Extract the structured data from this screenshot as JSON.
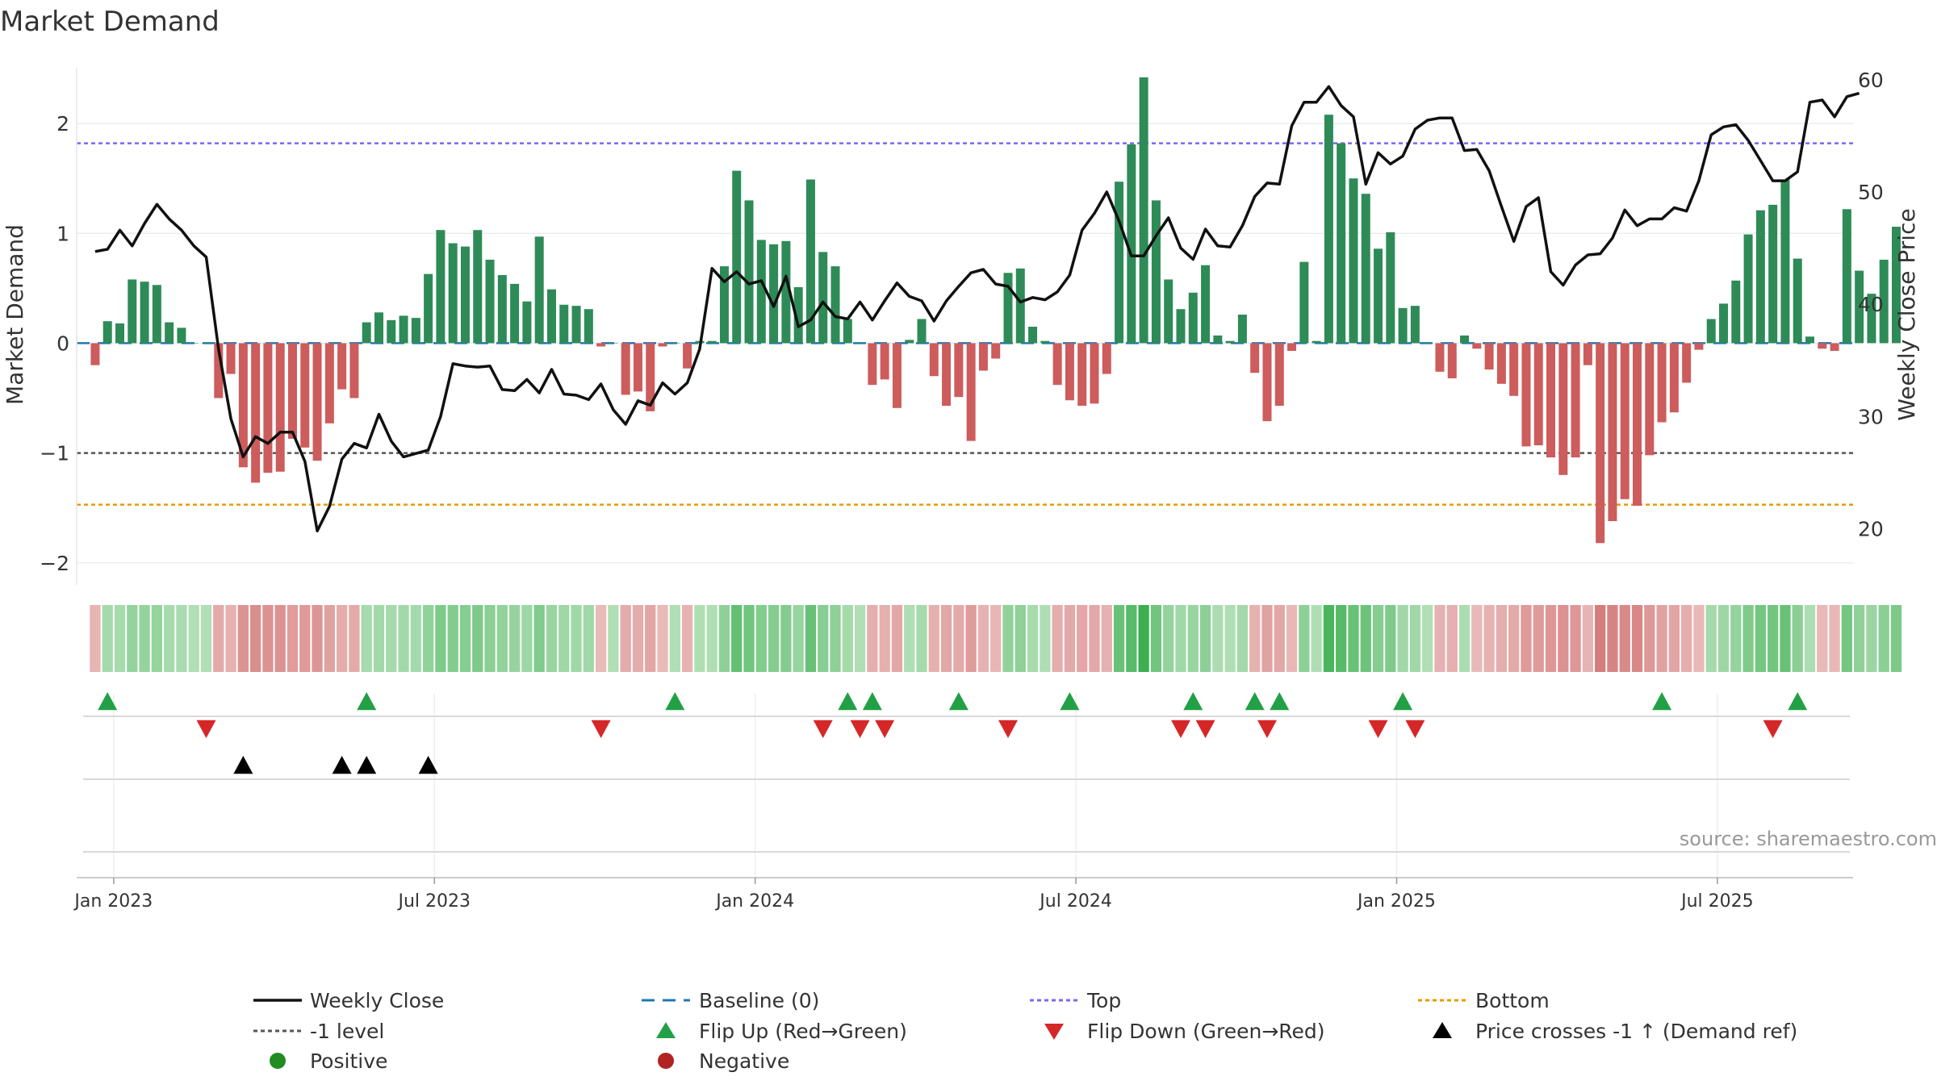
{
  "chart_data": {
    "type": "bar",
    "title": "Market Demand",
    "ylabel_left": "Market Demand",
    "ylabel_right": "Weekly Close Price",
    "source": "source: sharemaestro.com",
    "ylim_left": [
      -2.2,
      2.5
    ],
    "ylim_right": [
      15,
      61
    ],
    "yticks_left": [
      {
        "v": 2,
        "label": "2"
      },
      {
        "v": 1,
        "label": "1"
      },
      {
        "v": 0,
        "label": "0"
      },
      {
        "v": -1,
        "label": "−1"
      },
      {
        "v": -2,
        "label": "−2"
      }
    ],
    "yticks_right": [
      {
        "v": 60,
        "label": "60"
      },
      {
        "v": 50,
        "label": "50"
      },
      {
        "v": 40,
        "label": "40"
      },
      {
        "v": 30,
        "label": "30"
      },
      {
        "v": 20,
        "label": "20"
      }
    ],
    "x_range_weeks": [
      -1.5,
      142.5
    ],
    "xticks": [
      {
        "w": 1.5,
        "label": "Jan 2023"
      },
      {
        "w": 27.5,
        "label": "Jul 2023"
      },
      {
        "w": 53.5,
        "label": "Jan 2024"
      },
      {
        "w": 79.5,
        "label": "Jul 2024"
      },
      {
        "w": 105.5,
        "label": "Jan 2025"
      },
      {
        "w": 131.5,
        "label": "Jul 2025"
      }
    ],
    "reference_lines": {
      "baseline": 0,
      "top": 1.82,
      "minus_one": -1,
      "bottom": -1.47
    },
    "demand": [
      -0.2,
      0.2,
      0.18,
      0.58,
      0.56,
      0.53,
      0.19,
      0.14,
      0,
      0,
      -0.5,
      -0.28,
      -1.13,
      -1.27,
      -1.18,
      -1.17,
      -0.87,
      -0.95,
      -1.07,
      -0.73,
      -0.42,
      -0.5,
      0.19,
      0.28,
      0.21,
      0.25,
      0.23,
      0.63,
      1.03,
      0.91,
      0.88,
      1.03,
      0.76,
      0.62,
      0.54,
      0.38,
      0.97,
      0.49,
      0.35,
      0.34,
      0.31,
      -0.03,
      0,
      -0.47,
      -0.44,
      -0.62,
      -0.03,
      0,
      -0.23,
      0.02,
      0.02,
      0.7,
      1.57,
      1.3,
      0.94,
      0.9,
      0.93,
      0.51,
      1.49,
      0.83,
      0.7,
      0.22,
      0,
      -0.38,
      -0.33,
      -0.59,
      0.03,
      0.22,
      -0.3,
      -0.57,
      -0.49,
      -0.89,
      -0.25,
      -0.14,
      0.64,
      0.68,
      0.15,
      0.02,
      -0.38,
      -0.52,
      -0.57,
      -0.55,
      -0.28,
      1.47,
      1.81,
      2.42,
      1.3,
      0.58,
      0.31,
      0.46,
      0.71,
      0.07,
      0.02,
      0.26,
      -0.27,
      -0.71,
      -0.57,
      -0.07,
      0.74,
      0.02,
      2.08,
      1.82,
      1.5,
      1.36,
      0.86,
      1.01,
      0.32,
      0.34,
      0,
      -0.26,
      -0.32,
      0.07,
      -0.05,
      -0.24,
      -0.37,
      -0.48,
      -0.94,
      -0.93,
      -1.04,
      -1.2,
      -1.04,
      -0.2,
      -1.82,
      -1.62,
      -1.42,
      -1.48,
      -1.02,
      -0.72,
      -0.63,
      -0.36,
      -0.06,
      0.22,
      0.36,
      0.57,
      0.99,
      1.21,
      1.26,
      1.49,
      0.77,
      0.06,
      -0.05,
      -0.07,
      1.22,
      0.66,
      0.45,
      0.76,
      1.06
    ],
    "price": [
      44.7,
      44.9,
      46.6,
      45.2,
      47.2,
      48.9,
      47.6,
      46.6,
      45.2,
      44.2,
      36.0,
      29.8,
      26.4,
      28.2,
      27.6,
      28.6,
      28.6,
      26.0,
      19.8,
      22.0,
      26.2,
      27.6,
      27.2,
      30.2,
      27.8,
      26.4,
      26.7,
      27.0,
      30.0,
      34.7,
      34.5,
      34.4,
      34.5,
      32.4,
      32.3,
      33.3,
      32.1,
      34.2,
      32.0,
      31.9,
      31.5,
      32.9,
      30.6,
      29.3,
      31.4,
      31.0,
      33.0,
      32.0,
      33.0,
      36.0,
      43.2,
      42.0,
      42.9,
      41.8,
      42.1,
      39.8,
      42.5,
      38.0,
      38.6,
      40.2,
      38.9,
      38.7,
      40.2,
      38.6,
      40.3,
      41.9,
      40.7,
      40.3,
      38.5,
      40.3,
      41.6,
      42.8,
      43.1,
      41.8,
      41.6,
      40.2,
      40.6,
      40.4,
      41.1,
      42.6,
      46.6,
      48.1,
      50.0,
      47.4,
      44.3,
      44.3,
      46.1,
      47.7,
      45.0,
      44.0,
      46.7,
      45.2,
      45.1,
      47.0,
      49.6,
      50.8,
      50.7,
      55.9,
      58.0,
      58.0,
      59.4,
      57.7,
      56.7,
      50.7,
      53.5,
      52.5,
      53.2,
      55.6,
      56.4,
      56.6,
      56.6,
      53.7,
      53.8,
      51.9,
      48.7,
      45.6,
      48.7,
      49.5,
      42.9,
      41.7,
      43.5,
      44.4,
      44.5,
      45.9,
      48.4,
      47.0,
      47.6,
      47.6,
      48.6,
      48.3,
      51.0,
      55.1,
      55.8,
      56.0,
      54.6,
      52.8,
      51.0,
      51.0,
      51.8,
      58.0,
      58.2,
      56.7,
      58.5,
      58.8
    ],
    "flip_up_weeks": [
      1,
      22,
      47,
      61,
      63,
      70,
      79,
      89,
      94,
      96,
      106,
      127,
      138
    ],
    "flip_down_weeks": [
      9,
      41,
      59,
      62,
      64,
      74,
      88,
      90,
      95,
      104,
      107,
      136
    ],
    "price_cross_weeks": [
      12,
      20,
      22,
      27
    ]
  },
  "legend": {
    "weekly_close": "Weekly Close",
    "baseline": "Baseline (0)",
    "top": "Top",
    "bottom": "Bottom",
    "minus_one": "-1 level",
    "flip_up": "Flip Up (Red→Green)",
    "flip_down": "Flip Down (Green→Red)",
    "price_cross": "Price crosses -1 ↑ (Demand ref)",
    "positive": "Positive",
    "negative": "Negative"
  },
  "colors": {
    "pos": "#2e8b57",
    "neg": "#cd5c5c",
    "price": "#111111",
    "baseline": "#1f77b4",
    "top": "#7b68ee",
    "minus_one": "#555555",
    "bottom": "#e69b00",
    "flip_up": "#22a046",
    "flip_down": "#d62728",
    "cross": "#000000",
    "legend_positive": "#228b22",
    "legend_negative": "#b22222"
  }
}
